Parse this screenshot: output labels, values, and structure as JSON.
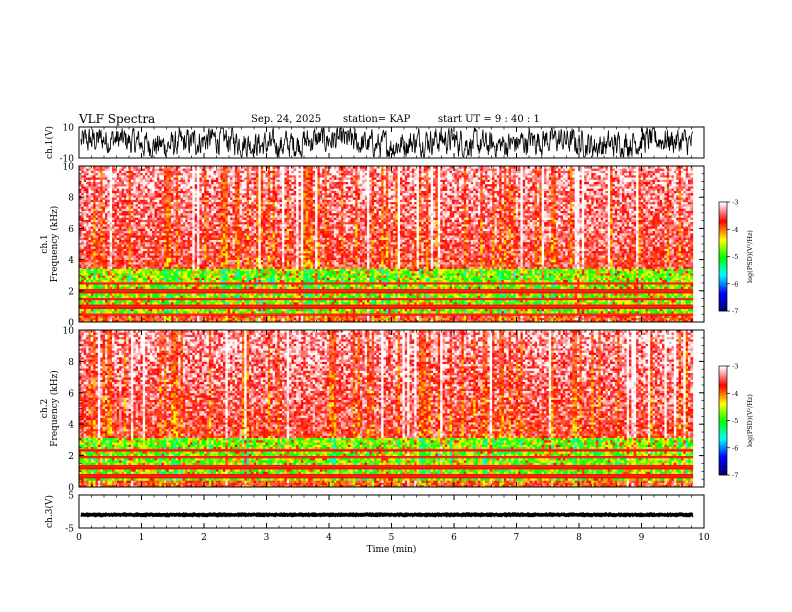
{
  "header": {
    "title": "VLF Spectra",
    "date": "Sep. 24, 2025",
    "station": "station= KAP",
    "start_time": "start  UT  =   9  : 40 : 1"
  },
  "chart_data": [
    {
      "id": "ch1-waveform",
      "type": "line",
      "ylabel": "ch.1(V)",
      "ylim": [
        -10,
        10
      ],
      "yticks": [
        "10",
        "-10"
      ],
      "xlim": [
        0,
        10
      ],
      "xmax_data": 9.82,
      "description_series": "dense noisy waveform oscillating roughly between -9 and +9 V"
    },
    {
      "id": "ch1-spectrogram",
      "type": "heatmap",
      "ylabel": "ch.1\nFrequency  (kHz)",
      "ylabel_lines": [
        "ch.1",
        "Frequency  (kHz)"
      ],
      "ylim": [
        0,
        10
      ],
      "yticks": [
        "0",
        "2",
        "4",
        "6",
        "8",
        "10"
      ],
      "xlim": [
        0,
        10
      ],
      "xmax_data": 9.82,
      "colorbar": {
        "label": "log(PSD)(V²/Hz)",
        "range": [
          -7,
          -3
        ],
        "ticks": [
          "-3",
          "-4",
          "-5",
          "-6",
          "-7"
        ],
        "colors": [
          "#000060",
          "#0000ff",
          "#00ffff",
          "#00ff00",
          "#ffff00",
          "#ff0000",
          "#ffffff"
        ]
      },
      "bands": [
        {
          "from": 0.0,
          "to": 0.6,
          "level": "high"
        },
        {
          "from": 0.6,
          "to": 3.5,
          "level": "low"
        },
        {
          "from": 3.5,
          "to": 10.0,
          "level": "high"
        }
      ],
      "emission_lines_khz": [
        0.5,
        1.0,
        1.5,
        2.0,
        2.5
      ]
    },
    {
      "id": "ch2-spectrogram",
      "type": "heatmap",
      "ylabel": "ch.2\nFrequency  (kHz)",
      "ylabel_lines": [
        "ch.2",
        "Frequency  (kHz)"
      ],
      "ylim": [
        0,
        10
      ],
      "yticks": [
        "0",
        "2",
        "4",
        "6",
        "8",
        "10"
      ],
      "xlim": [
        0,
        10
      ],
      "xmax_data": 9.82,
      "colorbar": {
        "label": "log(PSD)(V²/Hz)",
        "range": [
          -7,
          -3
        ],
        "ticks": [
          "-3",
          "-4",
          "-5",
          "-6",
          "-7"
        ],
        "colors": [
          "#000060",
          "#0000ff",
          "#00ffff",
          "#00ff00",
          "#ffff00",
          "#ff0000",
          "#ffffff"
        ]
      },
      "bands": [
        {
          "from": 0.0,
          "to": 0.4,
          "level": "high"
        },
        {
          "from": 0.4,
          "to": 3.2,
          "level": "low"
        },
        {
          "from": 3.2,
          "to": 10.0,
          "level": "high"
        }
      ],
      "emission_lines_khz": [
        0.7,
        1.3,
        1.9,
        2.4
      ]
    },
    {
      "id": "ch3-waveform",
      "type": "line",
      "ylabel": "ch.3(V)",
      "ylim": [
        -5,
        5
      ],
      "yticks": [
        "5",
        "-5"
      ],
      "xlim": [
        0,
        10
      ],
      "xmax_data": 9.82,
      "description_series": "thick band near -1 V with small amplitude"
    }
  ],
  "x_axis": {
    "label": "Time  (min)",
    "ticks": [
      "0",
      "1",
      "2",
      "3",
      "4",
      "5",
      "6",
      "7",
      "8",
      "9",
      "10"
    ]
  }
}
